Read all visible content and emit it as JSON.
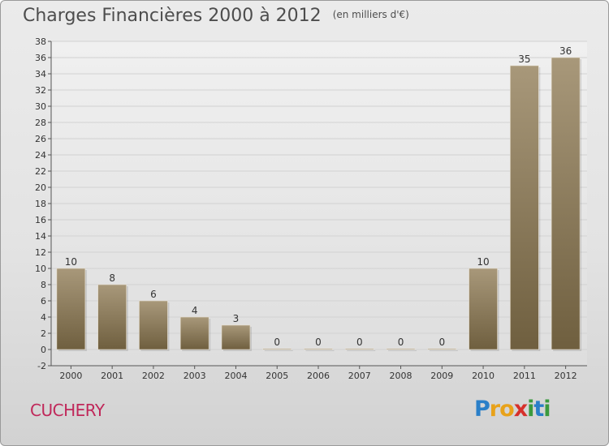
{
  "title": "Charges Financières 2000 à 2012",
  "unit_note": "(en milliers d'€)",
  "commune": "CUCHERY",
  "logo": {
    "letters": [
      {
        "ch": "P",
        "color": "#2a7fc8"
      },
      {
        "ch": "r",
        "color": "#e8a21a"
      },
      {
        "ch": "o",
        "color": "#e8a21a"
      },
      {
        "ch": "x",
        "color": "#d6302b"
      },
      {
        "ch": "i",
        "color": "#3b9a3e"
      },
      {
        "ch": "t",
        "color": "#2a7fc8"
      },
      {
        "ch": "i",
        "color": "#3b9a3e"
      }
    ]
  },
  "colors": {
    "bar_light": "#a8987a",
    "bar_dark": "#6f5f3f",
    "grid": "#d2d2d2",
    "text": "#333333"
  },
  "chart_data": {
    "type": "bar",
    "title": "Charges Financières 2000 à 2012",
    "subtitle": "(en milliers d'€)",
    "categories": [
      "2000",
      "2001",
      "2002",
      "2003",
      "2004",
      "2005",
      "2006",
      "2007",
      "2008",
      "2009",
      "2010",
      "2011",
      "2012"
    ],
    "values": [
      10,
      8,
      6,
      4,
      3,
      0,
      0,
      0,
      0,
      0,
      10,
      35,
      36
    ],
    "ylim": [
      -2,
      38
    ],
    "yticks": [
      -2,
      0,
      2,
      4,
      6,
      8,
      10,
      12,
      14,
      16,
      18,
      20,
      22,
      24,
      26,
      28,
      30,
      32,
      34,
      36,
      38
    ],
    "grid": true
  }
}
